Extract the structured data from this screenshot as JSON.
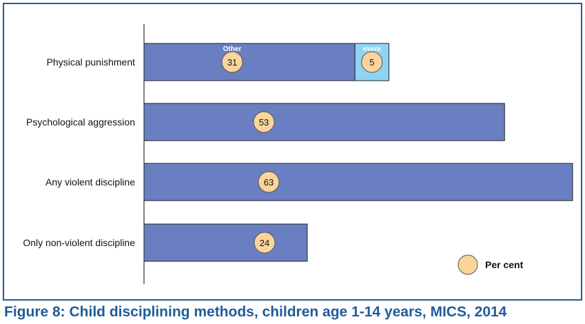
{
  "figure_caption": "Figure 8: Child disciplining methods, children age 1-14 years, MICS, 2014",
  "colors": {
    "frame_border": "#1f5c99",
    "bar_main": "#6a7fc1",
    "bar_severe": "#8fd3f3",
    "circle_fill": "#fad49b",
    "circle_stroke": "#555555",
    "caption": "#1f5c99"
  },
  "chart_data": {
    "type": "bar",
    "orientation": "horizontal",
    "stacked": true,
    "categories": [
      "Physical punishment",
      "Psychological aggression",
      "Any violent discipline",
      "Only non-violent discipline"
    ],
    "series": [
      {
        "name": "Other",
        "values": [
          31,
          53,
          63,
          24
        ],
        "color": "#6a7fc1"
      },
      {
        "name": "Severe",
        "values": [
          5,
          0,
          0,
          0
        ],
        "color": "#8fd3f3"
      }
    ],
    "segment_labels": [
      "Other",
      "evere"
    ],
    "xlim": [
      0,
      63
    ],
    "grid": false,
    "legend": {
      "label": "Per cent",
      "placement": "bottom-right"
    }
  }
}
